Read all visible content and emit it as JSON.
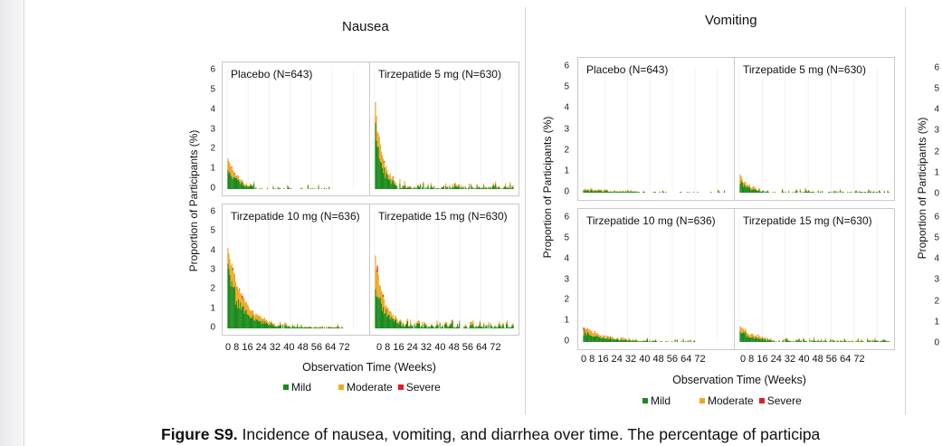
{
  "caption": {
    "label": "Figure S9.",
    "text": "Incidence of nausea, vomiting, and diarrhea over time. The percentage of participa"
  },
  "colors": {
    "mild": "#1a8a1a",
    "moderate": "#f2a623",
    "severe": "#e0201b"
  },
  "chart_data": [
    {
      "type": "bar",
      "title": "Nausea",
      "ylabel": "Proportion of Participants (%)",
      "xlabel": "Observation Time (Weeks)",
      "x_tick_labels": "0 8 16 24 32 40 48 56 64 72",
      "y_ticks": [
        "0",
        "1",
        "2",
        "3",
        "4",
        "5",
        "6"
      ],
      "ylim": [
        0,
        6
      ],
      "xlim": [
        0,
        78
      ],
      "legend": [
        {
          "key": "mild",
          "label": "Mild"
        },
        {
          "key": "moderate",
          "label": "Moderate"
        },
        {
          "key": "severe",
          "label": "Severe"
        }
      ],
      "panels": [
        {
          "title": "Placebo (N=643)",
          "peak": 1.6,
          "decay": 5,
          "tail": 0.25,
          "density": 0.35,
          "extent": 58,
          "seed": 11
        },
        {
          "title": "Tirzepatide 5 mg (N=630)",
          "peak": 4.4,
          "decay": 4,
          "tail": 0.35,
          "density": 0.85,
          "extent": 78,
          "seed": 23
        },
        {
          "title": "Tirzepatide 10 mg (N=636)",
          "peak": 4.2,
          "decay": 9,
          "tail": 0.2,
          "density": 0.9,
          "extent": 66,
          "seed": 37
        },
        {
          "title": "Tirzepatide 15 mg (N=630)",
          "peak": 3.8,
          "decay": 5,
          "tail": 0.4,
          "density": 0.9,
          "extent": 78,
          "seed": 41
        }
      ]
    },
    {
      "type": "bar",
      "title": "Vomiting",
      "ylabel": "Proportion of Participants (%)",
      "xlabel": "Observation Time (Weeks)",
      "x_tick_labels": "0 8 16 24 32 40 48 56 64 72",
      "y_ticks": [
        "0",
        "1",
        "2",
        "3",
        "4",
        "5",
        "6"
      ],
      "ylim": [
        0,
        6
      ],
      "xlim": [
        0,
        78
      ],
      "legend": [
        {
          "key": "mild",
          "label": "Mild"
        },
        {
          "key": "moderate",
          "label": "Moderate"
        },
        {
          "key": "severe",
          "label": "Severe"
        }
      ],
      "panels": [
        {
          "title": "Placebo (N=643)",
          "peak": 0.15,
          "decay": 10,
          "tail": 0.12,
          "density": 0.22,
          "extent": 78,
          "seed": 53
        },
        {
          "title": "Tirzepatide 5 mg (N=630)",
          "peak": 0.8,
          "decay": 4,
          "tail": 0.18,
          "density": 0.45,
          "extent": 78,
          "seed": 61
        },
        {
          "title": "Tirzepatide 10 mg (N=636)",
          "peak": 0.7,
          "decay": 10,
          "tail": 0.15,
          "density": 0.5,
          "extent": 62,
          "seed": 71
        },
        {
          "title": "Tirzepatide 15 mg (N=630)",
          "peak": 0.8,
          "decay": 6,
          "tail": 0.2,
          "density": 0.7,
          "extent": 78,
          "seed": 83
        }
      ]
    },
    {
      "type": "bar",
      "title": "",
      "ylabel": "Proportion of Participants (%)",
      "y_ticks": [
        "0",
        "1",
        "2",
        "3",
        "4",
        "5",
        "6"
      ],
      "ylim": [
        0,
        6
      ]
    }
  ]
}
